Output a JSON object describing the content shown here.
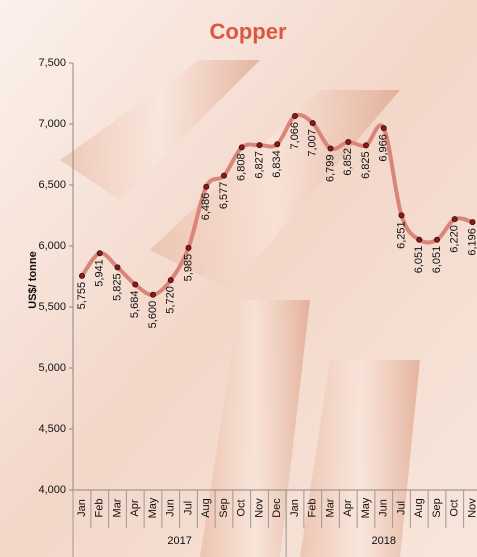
{
  "chart_data": {
    "type": "line",
    "title": "Copper",
    "y_label": "US$/ tonne",
    "groups": [
      {
        "label": "2017",
        "categories": [
          "Jan",
          "Feb",
          "Mar",
          "Apr",
          "May",
          "Jun",
          "Jul",
          "Aug",
          "Sep",
          "Oct",
          "Nov",
          "Dec"
        ]
      },
      {
        "label": "2018",
        "categories": [
          "Jan",
          "Feb",
          "Mar",
          "Apr",
          "May",
          "Jun",
          "Jul",
          "Aug",
          "Sep",
          "Oct",
          "Nov"
        ]
      }
    ],
    "values": [
      5755,
      5941,
      5825,
      5684,
      5600,
      5720,
      5985,
      6486,
      6577,
      6808,
      6827,
      6834,
      7066,
      7007,
      6799,
      6852,
      6825,
      6966,
      6251,
      6051,
      6051,
      6220,
      6196
    ],
    "value_labels": [
      "5,755",
      "5,941",
      "5,825",
      "5,684",
      "5,600",
      "5,720",
      "5,985",
      "6,486",
      "6,577",
      "6,808",
      "6,827",
      "6,834",
      "7,066",
      "7,007",
      "6,799",
      "6,852",
      "6,825",
      "6,966",
      "6,251",
      "6,051",
      "6,051",
      "6,220",
      "6,196"
    ],
    "color": "#d9857a",
    "ylim": [
      4000,
      7500
    ],
    "yticks": [
      {
        "value": 4000,
        "label": "4,000"
      },
      {
        "value": 4500,
        "label": "4,500"
      },
      {
        "value": 5000,
        "label": "5,000"
      },
      {
        "value": 5500,
        "label": "5,500"
      },
      {
        "value": 6000,
        "label": "6,000"
      },
      {
        "value": 6500,
        "label": "6,500"
      },
      {
        "value": 7000,
        "label": "7,000"
      },
      {
        "value": 7500,
        "label": "7,500"
      }
    ]
  }
}
